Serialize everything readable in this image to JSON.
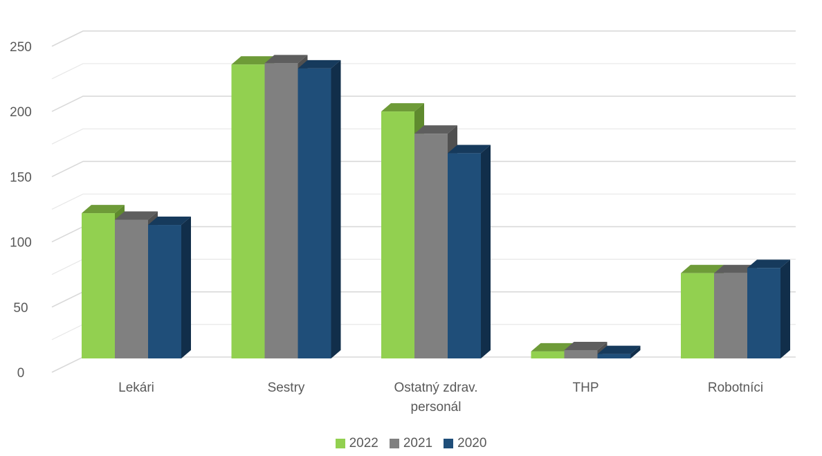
{
  "chart_data": {
    "type": "bar",
    "categories": [
      [
        "Lekári"
      ],
      [
        "Sestry"
      ],
      [
        "Ostatný zdrav.",
        "personál"
      ],
      [
        "THP"
      ],
      [
        "Robotníci"
      ]
    ],
    "series": [
      {
        "name": "2022",
        "values": [
          122,
          236,
          200,
          16,
          76
        ],
        "color": "#92D050",
        "top": "#6E9B38",
        "side": "#5F8A2E"
      },
      {
        "name": "2021",
        "values": [
          117,
          237,
          183,
          17,
          76
        ],
        "color": "#808080",
        "top": "#5E5E5E",
        "side": "#505050"
      },
      {
        "name": "2020",
        "values": [
          113,
          233,
          168,
          14,
          80
        ],
        "color": "#1F4E79",
        "top": "#163A5C",
        "side": "#112E4A"
      }
    ],
    "yticks": [
      0,
      50,
      100,
      150,
      200,
      250
    ],
    "ylim": [
      0,
      260
    ],
    "grid": true,
    "legend_position": "bottom"
  }
}
